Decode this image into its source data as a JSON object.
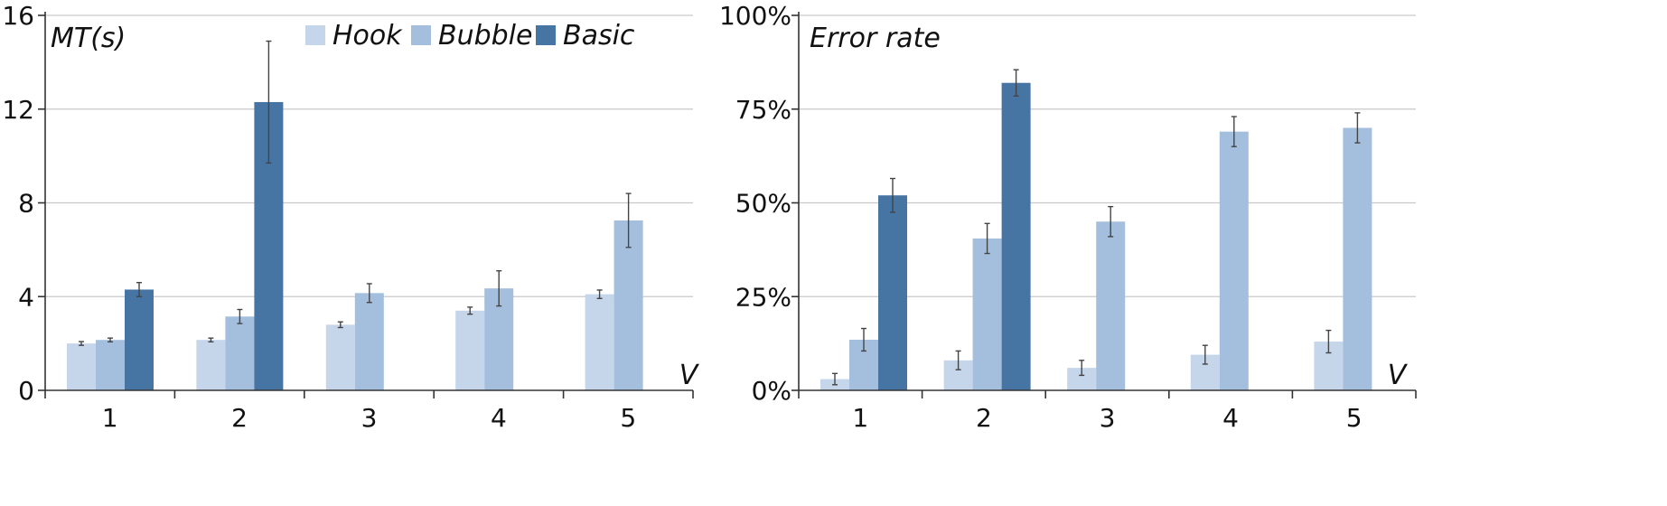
{
  "legend": [
    {
      "name": "Hook",
      "color": "#c5d5ea"
    },
    {
      "name": "Bubble",
      "color": "#a4bedd"
    },
    {
      "name": "Basic",
      "color": "#4675a4"
    }
  ],
  "chart_data": [
    {
      "type": "bar",
      "ylabel": "MT(s)",
      "xlabel": "V",
      "categories": [
        "1",
        "2",
        "3",
        "4",
        "5"
      ],
      "ylim": [
        0,
        16
      ],
      "yticks": [
        0,
        4,
        8,
        12,
        16
      ],
      "ytick_labels": [
        "0",
        "4",
        "8",
        "12",
        "16"
      ],
      "grid": true,
      "legend_position": "top",
      "series": [
        {
          "name": "Hook",
          "values": [
            2.0,
            2.15,
            2.8,
            3.4,
            4.1
          ],
          "errors": [
            0.08,
            0.08,
            0.12,
            0.15,
            0.18
          ]
        },
        {
          "name": "Bubble",
          "values": [
            2.15,
            3.15,
            4.15,
            4.35,
            7.25
          ],
          "errors": [
            0.08,
            0.3,
            0.4,
            0.75,
            1.15
          ]
        },
        {
          "name": "Basic",
          "values": [
            4.3,
            12.3,
            null,
            null,
            null
          ],
          "errors": [
            0.3,
            2.6,
            null,
            null,
            null
          ]
        }
      ]
    },
    {
      "type": "bar",
      "ylabel": "Error rate",
      "xlabel": "V",
      "categories": [
        "1",
        "2",
        "3",
        "4",
        "5"
      ],
      "ylim": [
        0,
        100
      ],
      "yticks": [
        0,
        25,
        50,
        75,
        100
      ],
      "ytick_labels": [
        "0%",
        "25%",
        "50%",
        "75%",
        "100%"
      ],
      "grid": true,
      "series": [
        {
          "name": "Hook",
          "values": [
            3,
            8,
            6,
            9.5,
            13
          ],
          "errors": [
            1.5,
            2.5,
            2,
            2.5,
            3
          ]
        },
        {
          "name": "Bubble",
          "values": [
            13.5,
            40.5,
            45,
            69,
            70
          ],
          "errors": [
            3,
            4,
            4,
            4,
            4
          ]
        },
        {
          "name": "Basic",
          "values": [
            52,
            82,
            null,
            null,
            null
          ],
          "errors": [
            4.5,
            3.5,
            null,
            null,
            null
          ]
        }
      ]
    }
  ]
}
